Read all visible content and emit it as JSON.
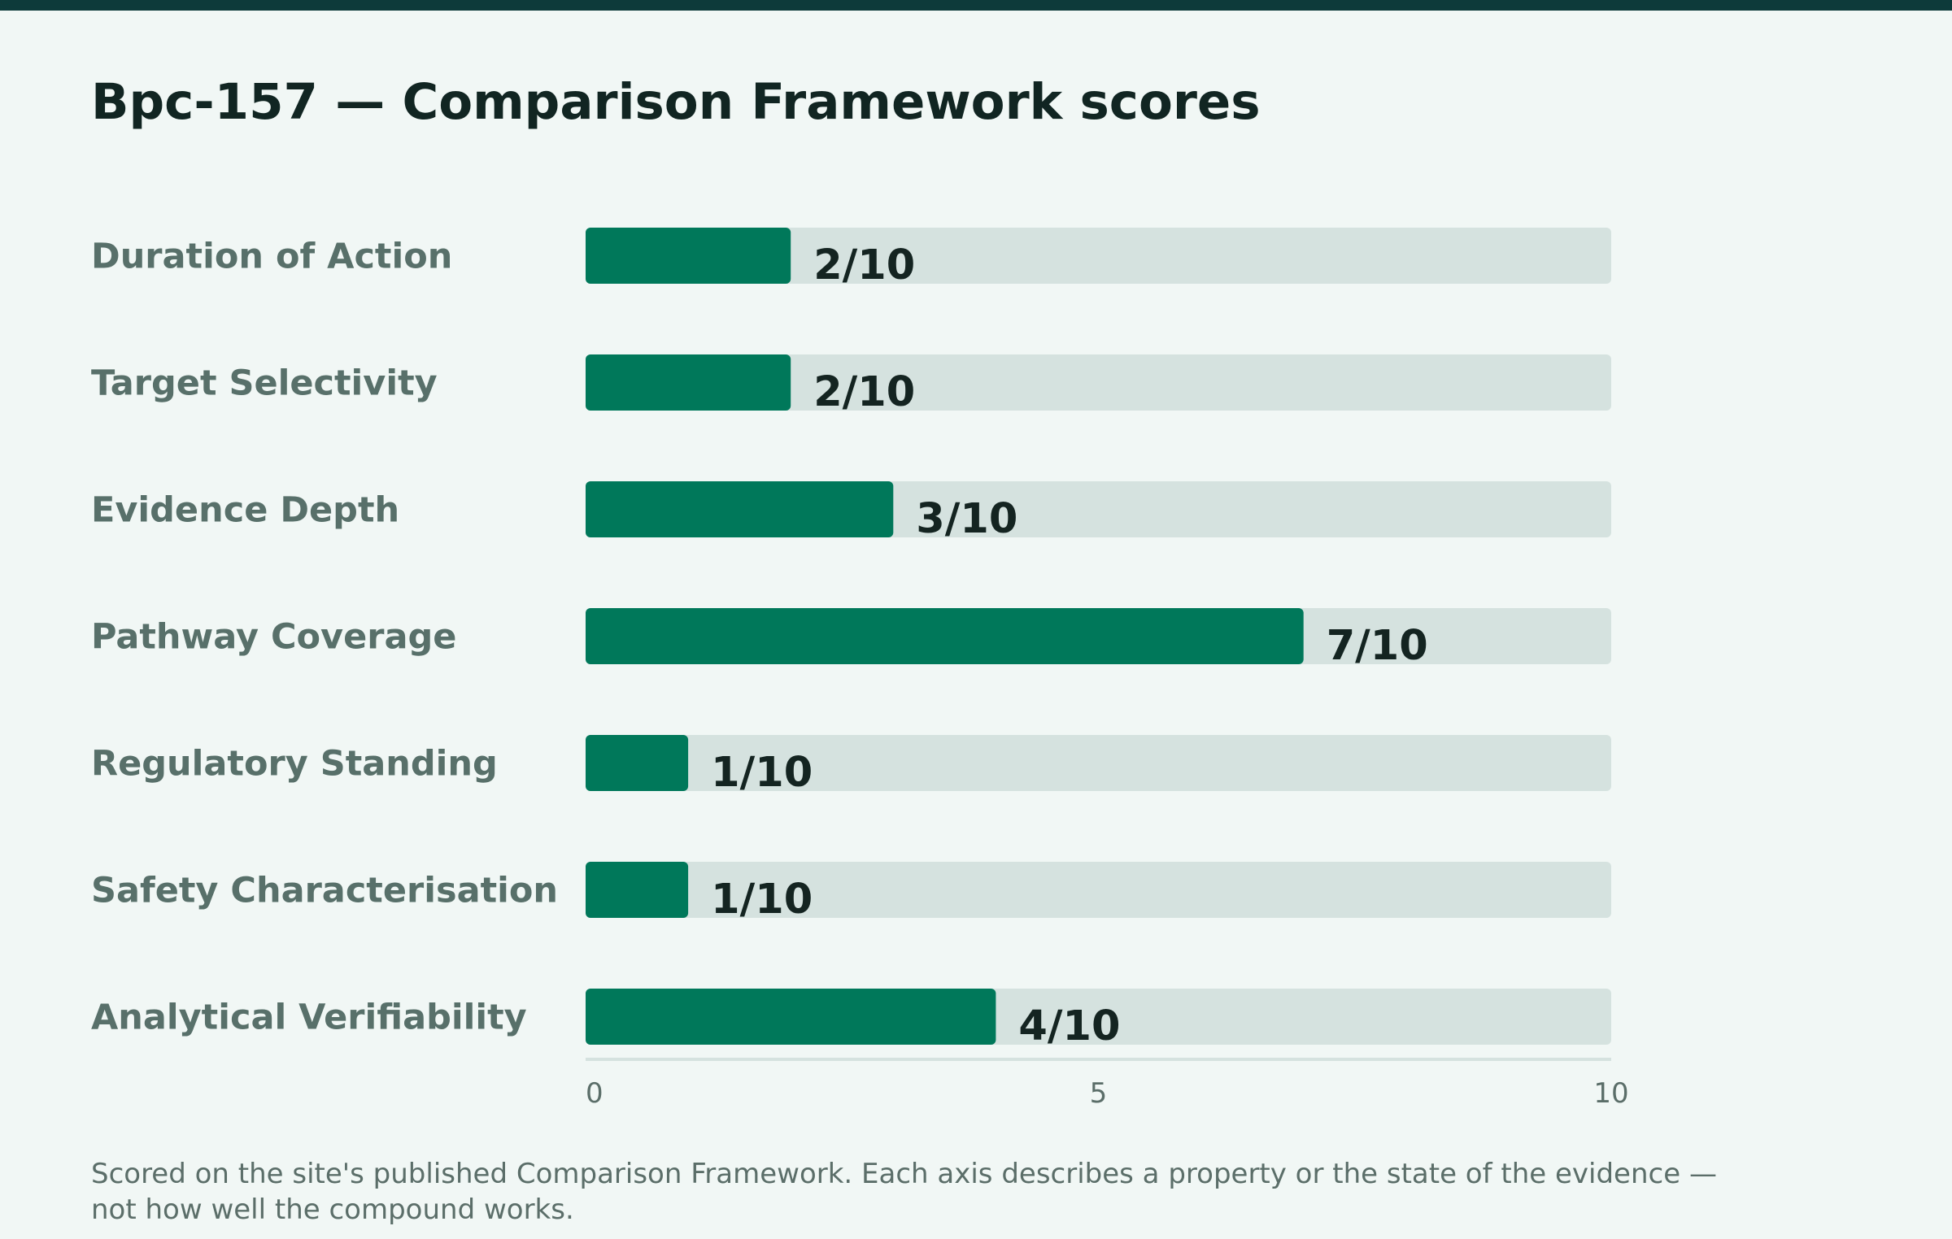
{
  "chart_data": {
    "type": "bar",
    "orientation": "horizontal",
    "title": "Bpc-157 — Comparison Framework scores",
    "categories": [
      "Duration of Action",
      "Target Selectivity",
      "Evidence Depth",
      "Pathway Coverage",
      "Regulatory Standing",
      "Safety Characterisation",
      "Analytical Verifiability"
    ],
    "values": [
      2,
      2,
      3,
      7,
      1,
      1,
      4
    ],
    "value_labels": [
      "2/10",
      "2/10",
      "3/10",
      "7/10",
      "1/10",
      "1/10",
      "4/10"
    ],
    "xlim": [
      0,
      10
    ],
    "xticks": [
      "0",
      "5",
      "10"
    ],
    "grid": false,
    "legend": "none"
  },
  "footnote": "Scored on the site's published Comparison Framework. Each axis describes a property or the state of the evidence — not how well the compound works.",
  "colors": {
    "top_bar": "#0d3a3a",
    "background": "#f1f7f5",
    "bar_fill": "#00785a",
    "bar_track": "#d5e2df",
    "axis_line": "#d5e2df"
  }
}
